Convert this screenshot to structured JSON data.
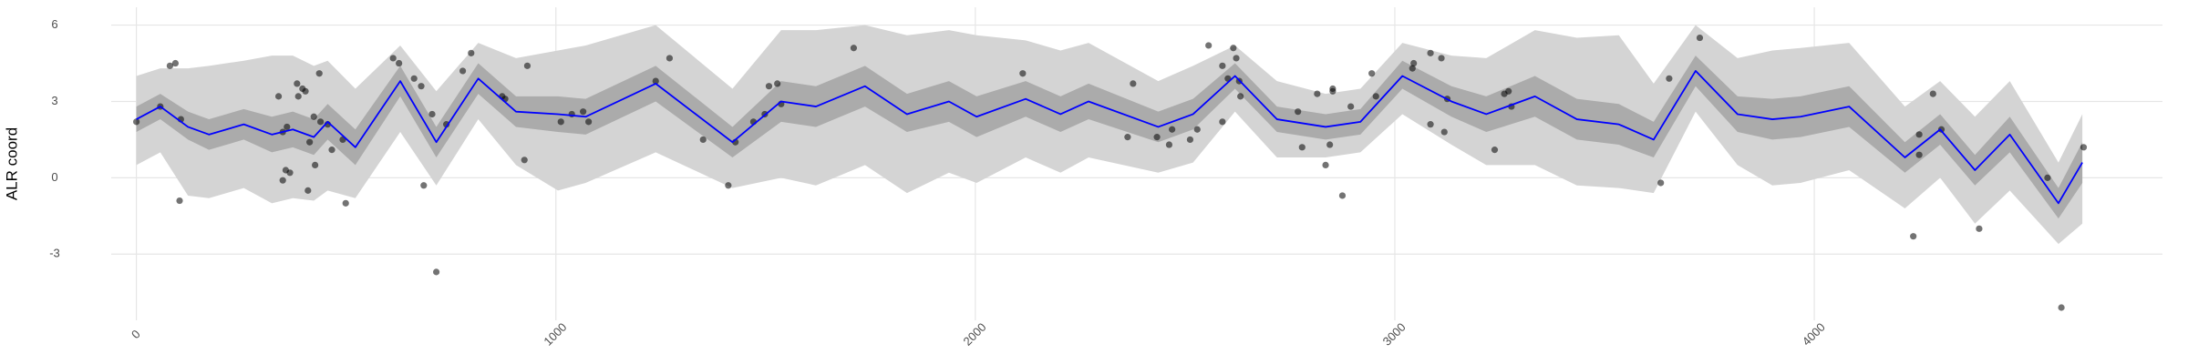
{
  "chart_data": {
    "type": "line",
    "y_label": "ALR coord",
    "xlim": [
      -60,
      4830
    ],
    "ylim": [
      -5.6,
      6.7
    ],
    "xticks": [
      0,
      1000,
      2000,
      3000,
      4000
    ],
    "yticks": [
      -3,
      0,
      3,
      6
    ],
    "grid": true,
    "x": [
      0,
      57,
      123,
      173,
      256,
      323,
      373,
      423,
      456,
      522,
      629,
      715,
      815,
      905,
      1005,
      1071,
      1238,
      1421,
      1537,
      1620,
      1737,
      1837,
      1937,
      2003,
      2120,
      2203,
      2270,
      2436,
      2519,
      2619,
      2719,
      2835,
      2918,
      3018,
      3135,
      3218,
      3334,
      3434,
      3534,
      3617,
      3717,
      3817,
      3900,
      3967,
      4083,
      4216,
      4300,
      4383,
      4466,
      4582,
      4639
    ],
    "bands": [
      {
        "color": "#d4d4d4",
        "lower": [
          0.5,
          1.0,
          -0.7,
          -0.8,
          -0.4,
          -1.0,
          -0.8,
          -0.9,
          -0.5,
          -0.8,
          1.8,
          -0.3,
          2.3,
          0.5,
          -0.5,
          -0.2,
          1.0,
          -0.4,
          0.0,
          -0.3,
          0.5,
          -0.6,
          0.2,
          -0.2,
          0.8,
          0.2,
          0.8,
          0.2,
          0.6,
          2.6,
          0.8,
          0.8,
          1.0,
          2.5,
          1.3,
          0.5,
          0.5,
          -0.3,
          -0.4,
          -0.6,
          2.6,
          0.5,
          -0.3,
          -0.2,
          0.3,
          -1.2,
          0.0,
          -1.8,
          -0.5,
          -2.6,
          -1.8
        ],
        "upper": [
          4.0,
          4.3,
          4.3,
          4.4,
          4.6,
          4.8,
          4.8,
          4.4,
          4.6,
          3.5,
          5.2,
          3.4,
          5.3,
          4.7,
          5.0,
          5.2,
          6.0,
          3.5,
          5.8,
          5.8,
          6.0,
          5.6,
          5.8,
          5.6,
          5.4,
          5.0,
          5.3,
          3.8,
          4.4,
          5.2,
          3.8,
          3.3,
          3.5,
          5.3,
          4.8,
          4.7,
          5.8,
          5.5,
          5.6,
          3.7,
          6.0,
          4.7,
          5.0,
          5.1,
          5.3,
          2.8,
          3.8,
          2.4,
          3.8,
          0.6,
          2.5
        ]
      },
      {
        "color": "#ababab",
        "lower": [
          1.8,
          2.3,
          1.5,
          1.1,
          1.5,
          1.0,
          1.2,
          0.9,
          1.5,
          0.5,
          3.2,
          0.8,
          3.3,
          2.0,
          1.8,
          1.7,
          3.0,
          0.8,
          2.2,
          2.0,
          2.8,
          1.8,
          2.2,
          1.6,
          2.4,
          1.8,
          2.3,
          1.4,
          1.9,
          3.5,
          1.8,
          1.5,
          1.7,
          3.5,
          2.4,
          1.8,
          2.4,
          1.5,
          1.3,
          0.8,
          3.6,
          1.8,
          1.5,
          1.6,
          2.0,
          0.2,
          1.3,
          -0.3,
          1.0,
          -1.6,
          -0.2
        ],
        "upper": [
          2.8,
          3.3,
          2.6,
          2.3,
          2.7,
          2.4,
          2.6,
          2.3,
          2.9,
          1.9,
          4.4,
          2.0,
          4.5,
          3.2,
          3.2,
          3.1,
          4.4,
          2.0,
          3.8,
          3.6,
          4.4,
          3.3,
          3.8,
          3.2,
          3.8,
          3.2,
          3.7,
          2.6,
          3.1,
          4.5,
          2.8,
          2.5,
          2.7,
          4.6,
          3.6,
          3.2,
          4.0,
          3.1,
          2.9,
          2.2,
          4.8,
          3.2,
          3.1,
          3.2,
          3.6,
          1.4,
          2.5,
          0.9,
          2.4,
          -0.4,
          1.4
        ]
      }
    ],
    "line": {
      "color": "#0000ff",
      "values": [
        2.3,
        2.8,
        2.0,
        1.7,
        2.1,
        1.7,
        1.9,
        1.6,
        2.2,
        1.2,
        3.8,
        1.4,
        3.9,
        2.6,
        2.5,
        2.4,
        3.7,
        1.4,
        3.0,
        2.8,
        3.6,
        2.5,
        3.0,
        2.4,
        3.1,
        2.5,
        3.0,
        2.0,
        2.5,
        4.0,
        2.3,
        2.0,
        2.2,
        4.0,
        3.0,
        2.5,
        3.2,
        2.3,
        2.1,
        1.5,
        4.2,
        2.5,
        2.3,
        2.4,
        2.8,
        0.8,
        1.9,
        0.3,
        1.7,
        -1.0,
        0.6
      ]
    },
    "points": {
      "color": "#000000",
      "x": [
        0,
        57,
        80,
        93,
        106,
        103,
        339,
        349,
        359,
        356,
        349,
        366,
        383,
        386,
        396,
        403,
        413,
        423,
        426,
        409,
        436,
        439,
        456,
        466,
        492,
        499,
        612,
        626,
        662,
        679,
        685,
        705,
        715,
        739,
        778,
        798,
        872,
        879,
        925,
        932,
        1012,
        1038,
        1065,
        1078,
        1238,
        1271,
        1351,
        1411,
        1428,
        1471,
        1498,
        1508,
        1528,
        1537,
        1710,
        2113,
        2363,
        2376,
        2433,
        2462,
        2469,
        2512,
        2529,
        2556,
        2589,
        2602,
        2615,
        2622,
        2629,
        2632,
        2589,
        2769,
        2779,
        2815,
        2852,
        2852,
        2835,
        2845,
        2875,
        2895,
        2955,
        2945,
        3045,
        3042,
        3085,
        3111,
        3085,
        3118,
        3125,
        3238,
        3271,
        3261,
        3278,
        3634,
        3654,
        3727,
        4236,
        4250,
        4250,
        4283,
        4303,
        4393,
        4556,
        4589,
        4642
      ],
      "y": [
        2.2,
        2.8,
        4.4,
        4.5,
        2.3,
        -0.9,
        3.2,
        1.8,
        2.0,
        0.3,
        -0.1,
        0.2,
        3.7,
        3.2,
        3.5,
        3.4,
        1.4,
        2.4,
        0.5,
        -0.5,
        4.1,
        2.2,
        2.1,
        1.1,
        1.5,
        -1.0,
        4.7,
        4.5,
        3.9,
        3.6,
        -0.3,
        2.5,
        -3.7,
        2.1,
        4.2,
        4.9,
        3.2,
        3.1,
        0.7,
        4.4,
        2.2,
        2.5,
        2.6,
        2.2,
        3.8,
        4.7,
        1.5,
        -0.3,
        1.4,
        2.2,
        2.5,
        3.6,
        3.7,
        2.9,
        5.1,
        4.1,
        1.6,
        3.7,
        1.6,
        1.3,
        1.9,
        1.5,
        1.9,
        5.2,
        4.4,
        3.9,
        5.1,
        4.7,
        3.8,
        3.2,
        2.2,
        2.6,
        1.2,
        3.3,
        3.5,
        3.4,
        0.5,
        1.3,
        -0.7,
        2.8,
        3.2,
        4.1,
        4.5,
        4.3,
        4.9,
        4.7,
        2.1,
        1.8,
        3.1,
        1.1,
        3.4,
        3.3,
        2.8,
        -0.2,
        3.9,
        5.5,
        -2.3,
        1.7,
        0.9,
        3.3,
        1.9,
        -2.0,
        0.0,
        -5.1,
        1.2
      ]
    }
  }
}
